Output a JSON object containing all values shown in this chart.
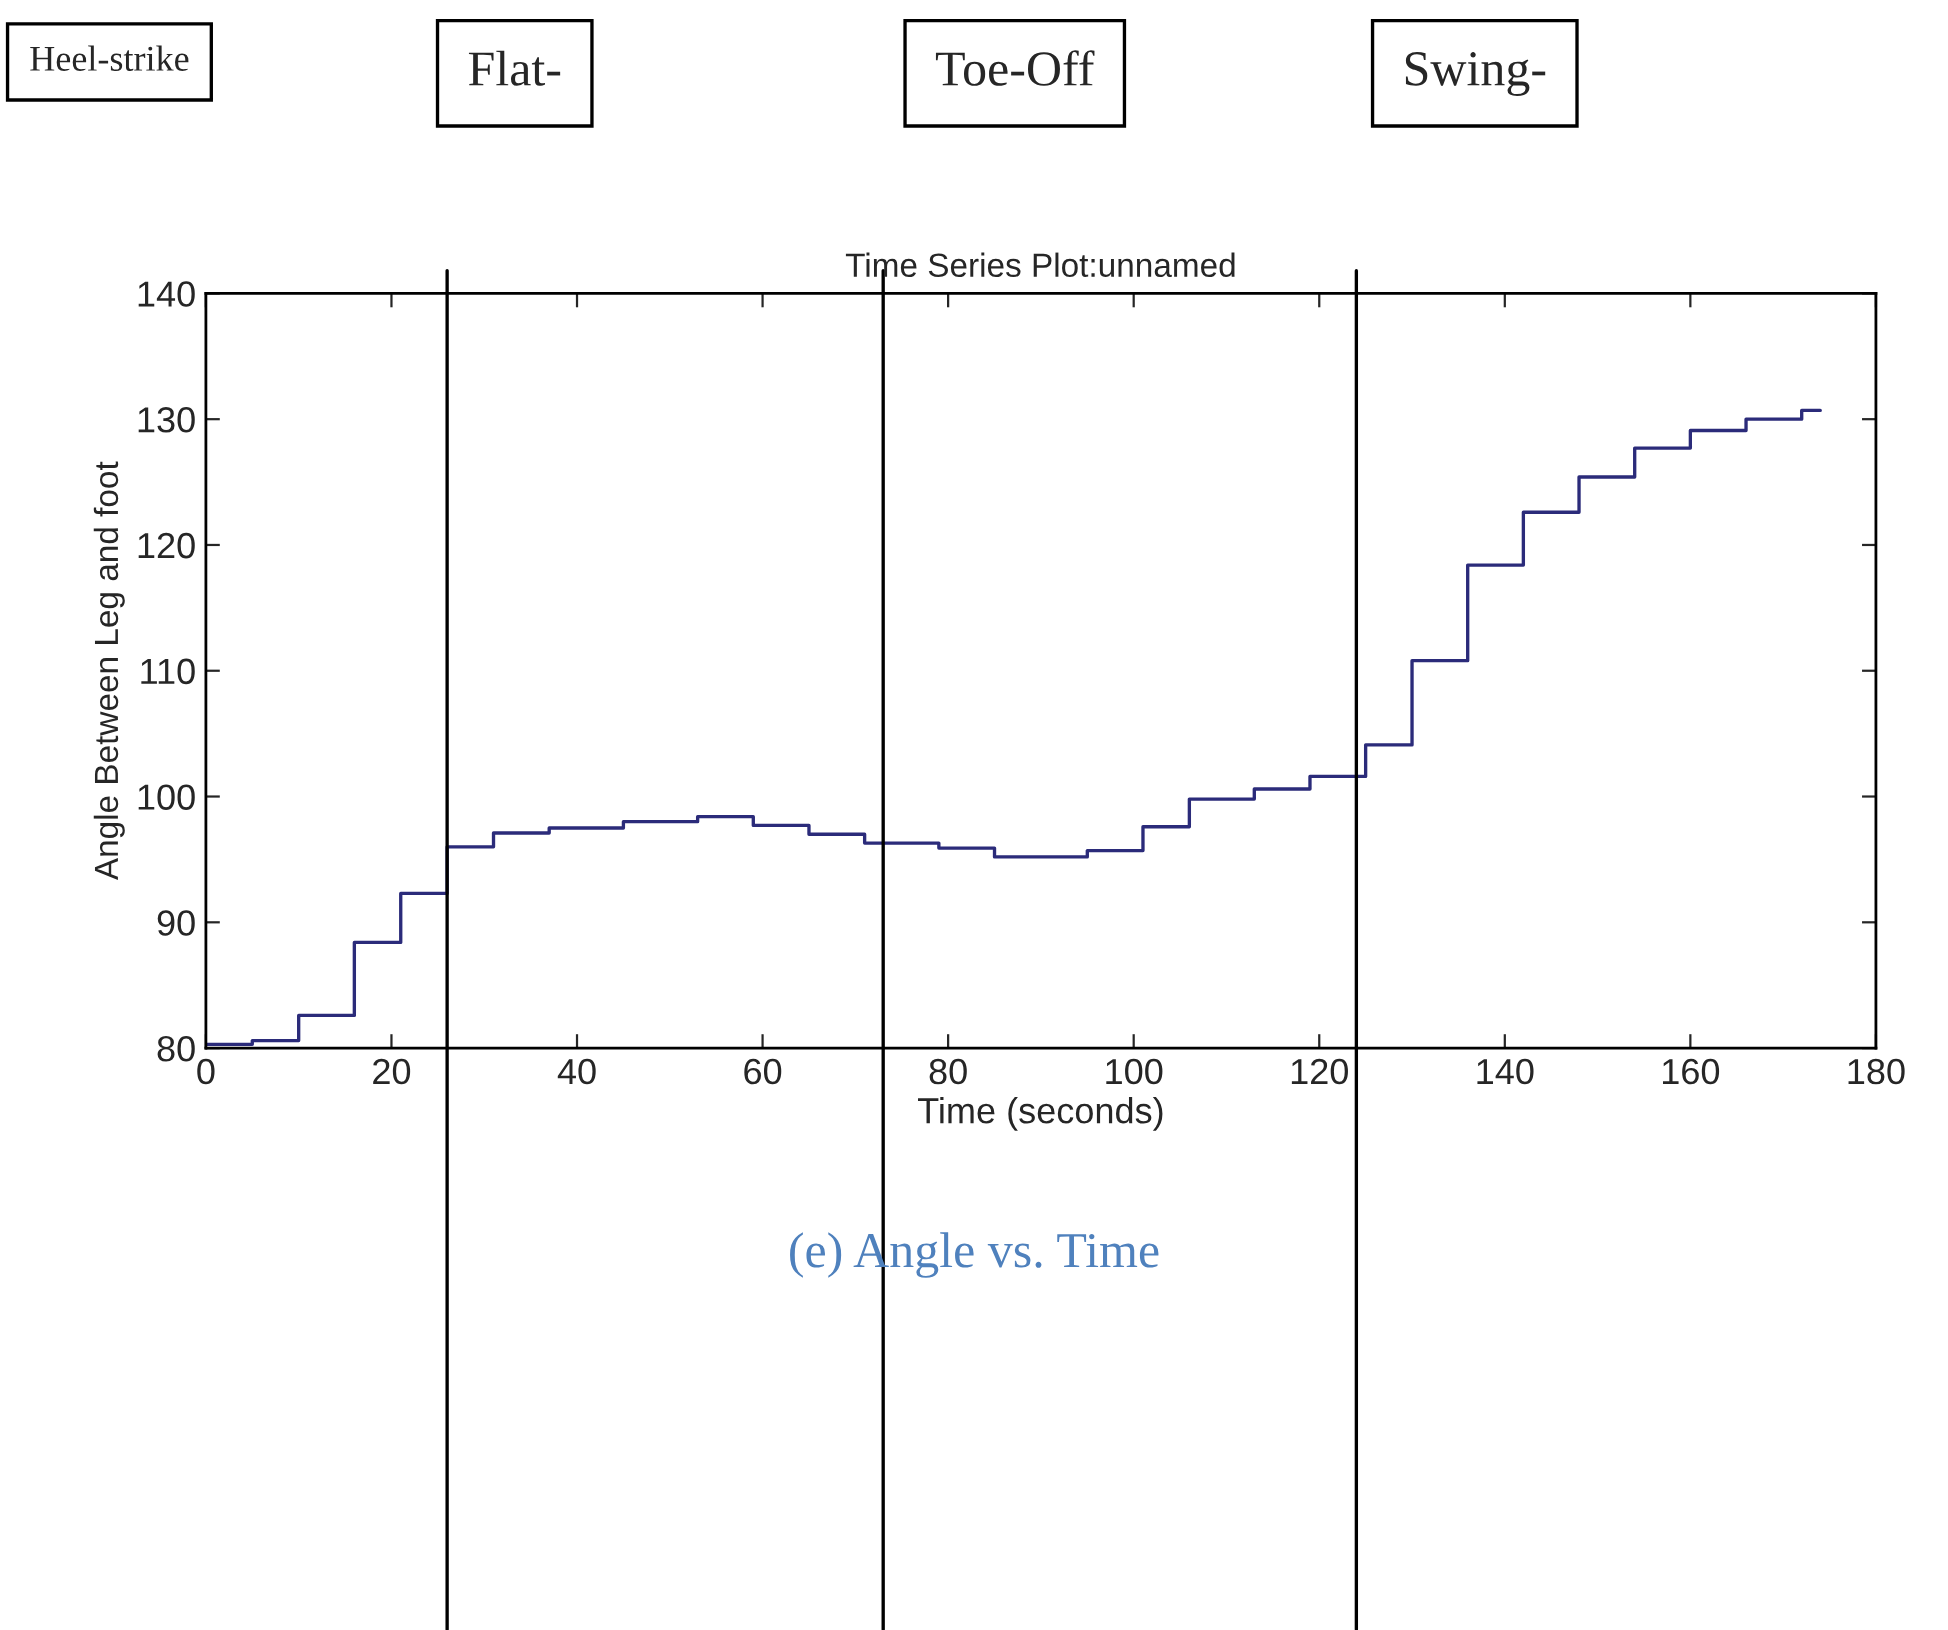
{
  "chart_data": {
    "type": "step",
    "title": "Time Series Plot:unnamed",
    "xlabel": "Time (seconds)",
    "ylabel": "Angle Between Leg and foot",
    "x": [
      0,
      5,
      10,
      16,
      21,
      26,
      31,
      37,
      45,
      53,
      59,
      65,
      71,
      79,
      85,
      95,
      101,
      106,
      113,
      119,
      125,
      130,
      136,
      142,
      148,
      154,
      160,
      166,
      172,
      174
    ],
    "series": [
      {
        "color": "#2b2b7a",
        "values": [
          80.3,
          80.6,
          82.6,
          88.4,
          92.3,
          96.0,
          97.1,
          97.5,
          98.0,
          98.4,
          97.7,
          97.0,
          96.3,
          95.9,
          95.2,
          95.7,
          97.6,
          99.8,
          100.6,
          101.6,
          104.1,
          110.8,
          118.4,
          122.6,
          125.4,
          127.7,
          129.1,
          130.0,
          130.7,
          130.7
        ]
      }
    ],
    "xlim": [
      0,
      180
    ],
    "xticks": [
      0,
      20,
      40,
      60,
      80,
      100,
      120,
      140,
      160,
      180
    ],
    "ylim": [
      80,
      140
    ],
    "yticks": [
      80,
      90,
      100,
      110,
      120,
      130,
      140
    ],
    "ref_lines": [
      {
        "axis": "x",
        "value": 26,
        "color": "#000000"
      },
      {
        "axis": "x",
        "value": 73,
        "color": "#000000"
      },
      {
        "axis": "x",
        "value": 124,
        "color": "#000000"
      }
    ],
    "annotations": [
      "Heel-strike",
      "Flat-",
      "Toe-Off",
      "Swing-",
      "(e) Angle vs. Time"
    ],
    "grid": false,
    "legend": false,
    "line_style": "solid",
    "marker": "none"
  }
}
